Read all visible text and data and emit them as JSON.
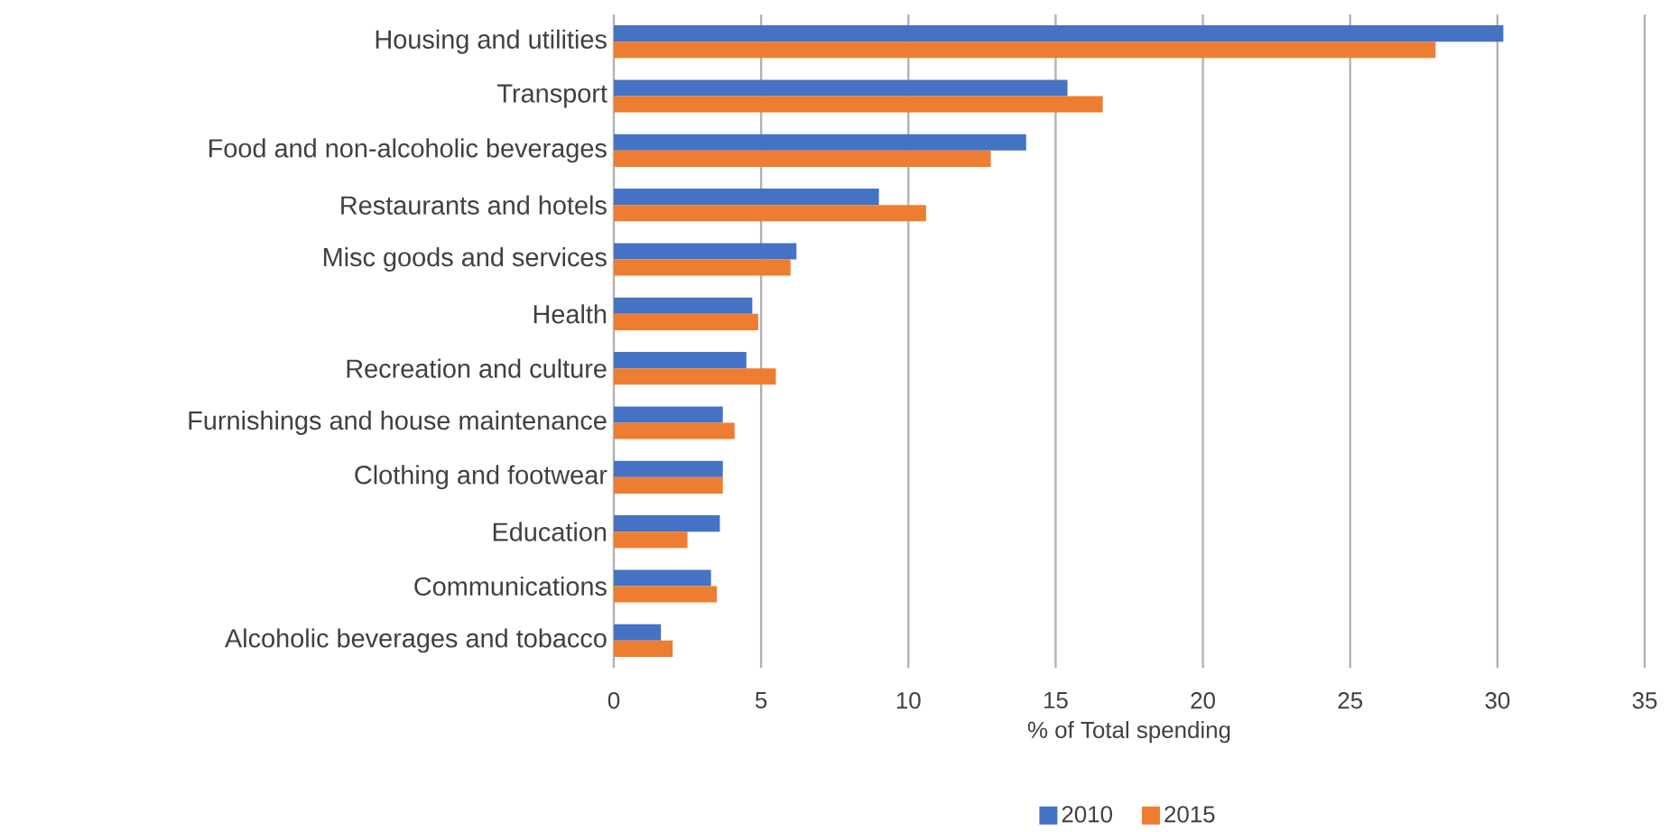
{
  "chart_data": {
    "type": "bar",
    "orientation": "horizontal",
    "categories": [
      "Housing and utilities",
      "Transport",
      "Food and non-alcoholic beverages",
      "Restaurants and hotels",
      "Misc goods and services",
      "Health",
      "Recreation and culture",
      "Furnishings and house maintenance",
      "Clothing and footwear",
      "Education",
      "Communications",
      "Alcoholic beverages and tobacco"
    ],
    "series": [
      {
        "name": "2010",
        "color": "#4472c4",
        "values": [
          30.2,
          15.4,
          14.0,
          9.0,
          6.2,
          4.7,
          4.5,
          3.7,
          3.7,
          3.6,
          3.3,
          1.6
        ]
      },
      {
        "name": "2015",
        "color": "#ed7d31",
        "values": [
          27.9,
          16.6,
          12.8,
          10.6,
          6.0,
          4.9,
          5.5,
          4.1,
          3.7,
          2.5,
          3.5,
          2.0
        ]
      }
    ],
    "xlim": [
      0,
      35
    ],
    "xticks": [
      0,
      5,
      10,
      15,
      20,
      25,
      30,
      35
    ],
    "xlabel": "% of Total spending",
    "grid": "x",
    "legend": "bottom"
  }
}
